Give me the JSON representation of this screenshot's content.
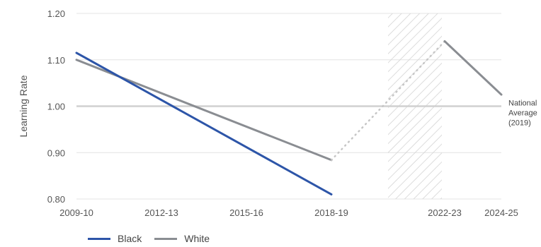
{
  "chart_data": {
    "type": "line",
    "ylabel": "Learning Rate",
    "ylim": [
      0.8,
      1.2
    ],
    "yticks": [
      "0.80",
      "0.90",
      "1.00",
      "1.10",
      "1.20"
    ],
    "x_tick_labels": [
      {
        "label": "2009-10",
        "x": 2009
      },
      {
        "label": "2012-13",
        "x": 2012
      },
      {
        "label": "2015-16",
        "x": 2015
      },
      {
        "label": "2018-19",
        "x": 2018
      },
      {
        "label": "2022-23",
        "x": 2022
      },
      {
        "label": "2024-25",
        "x": 2024
      }
    ],
    "xlim": [
      2009,
      2024
    ],
    "grid": "horizontal",
    "series": [
      {
        "name": "Black",
        "color": "#2D55A8",
        "points": [
          [
            2009,
            1.115
          ],
          [
            2018,
            0.81
          ]
        ]
      },
      {
        "name": "White",
        "color": "#8A8D92",
        "points": [
          [
            2009,
            1.1
          ],
          [
            2018,
            0.884
          ]
        ]
      }
    ],
    "white_dotted_segment": [
      [
        2018,
        0.884
      ],
      [
        2022,
        1.14
      ]
    ],
    "white_recent_segment": [
      [
        2022,
        1.14
      ],
      [
        2024,
        1.025
      ]
    ],
    "shaded_region": [
      2020,
      2021.9
    ],
    "reference_line": {
      "y": 1.0,
      "label": [
        "National",
        "Average",
        "(2019)"
      ]
    },
    "legend": {
      "placement": "bottom-left",
      "items": [
        "Black",
        "White"
      ]
    }
  }
}
